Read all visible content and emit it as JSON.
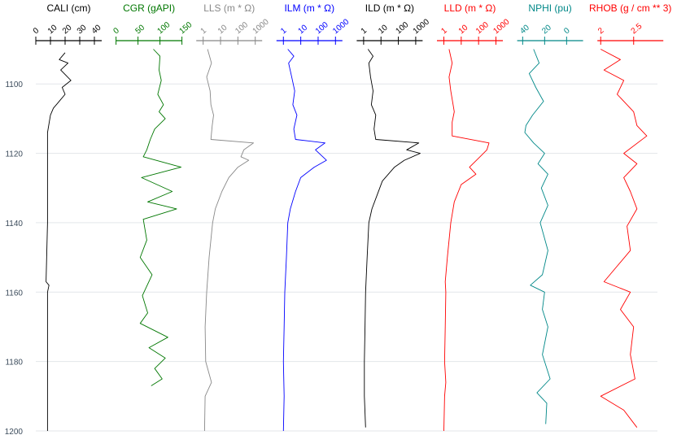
{
  "chart_data": {
    "type": "line",
    "orientation": "vertical-depth-log",
    "depth_axis": {
      "ylim": [
        1200,
        1088
      ],
      "ticks": [
        1100,
        1120,
        1140,
        1160,
        1180,
        1200
      ],
      "grid": true
    },
    "tracks": [
      {
        "name": "CALI (cm)",
        "color": "#000000",
        "scale": "linear",
        "xlim": [
          0,
          45
        ],
        "ticks": [
          0,
          10,
          20,
          30,
          40
        ],
        "tick_labels": [
          "0",
          "10",
          "20",
          "30",
          "40"
        ],
        "points": [
          [
            20,
            1091
          ],
          [
            16,
            1093
          ],
          [
            22,
            1094
          ],
          [
            17,
            1096
          ],
          [
            24,
            1099
          ],
          [
            18,
            1101
          ],
          [
            20,
            1103
          ],
          [
            16,
            1105
          ],
          [
            12,
            1107
          ],
          [
            10,
            1109
          ],
          [
            8,
            1114
          ],
          [
            8,
            1120
          ],
          [
            8,
            1140
          ],
          [
            7,
            1157
          ],
          [
            9,
            1158
          ],
          [
            8,
            1160
          ],
          [
            8,
            1180
          ],
          [
            8,
            1200
          ]
        ]
      },
      {
        "name": "CGR (gAPI)",
        "color": "#007700",
        "scale": "linear",
        "xlim": [
          0,
          150
        ],
        "ticks": [
          0,
          50,
          100,
          150
        ],
        "tick_labels": [
          "0",
          "50",
          "100",
          "150"
        ],
        "points": [
          [
            85,
            1090
          ],
          [
            100,
            1092
          ],
          [
            98,
            1096
          ],
          [
            103,
            1099
          ],
          [
            95,
            1103
          ],
          [
            108,
            1106
          ],
          [
            98,
            1108
          ],
          [
            112,
            1110
          ],
          [
            88,
            1113
          ],
          [
            78,
            1116
          ],
          [
            70,
            1119
          ],
          [
            62,
            1121
          ],
          [
            148,
            1124
          ],
          [
            58,
            1127
          ],
          [
            128,
            1131
          ],
          [
            72,
            1134
          ],
          [
            138,
            1136
          ],
          [
            62,
            1139
          ],
          [
            70,
            1145
          ],
          [
            55,
            1150
          ],
          [
            82,
            1155
          ],
          [
            60,
            1161
          ],
          [
            72,
            1166
          ],
          [
            55,
            1169
          ],
          [
            118,
            1173
          ],
          [
            75,
            1176
          ],
          [
            112,
            1179
          ],
          [
            88,
            1182
          ],
          [
            105,
            1185
          ],
          [
            80,
            1187
          ]
        ]
      },
      {
        "name": "LLS (m * Ω)",
        "color": "#888888",
        "scale": "log",
        "xlim": [
          0.4,
          2500
        ],
        "ticks": [
          1,
          10,
          100,
          1000
        ],
        "tick_labels": [
          "1",
          "10",
          "100",
          "1000"
        ],
        "points": [
          [
            1.8,
            1090
          ],
          [
            3,
            1094
          ],
          [
            1.6,
            1098
          ],
          [
            2.5,
            1102
          ],
          [
            2.8,
            1106
          ],
          [
            4,
            1109
          ],
          [
            3.3,
            1112
          ],
          [
            2.8,
            1116
          ],
          [
            800,
            1117
          ],
          [
            220,
            1119
          ],
          [
            150,
            1121
          ],
          [
            420,
            1122
          ],
          [
            100,
            1124
          ],
          [
            30,
            1127
          ],
          [
            12,
            1131
          ],
          [
            5,
            1136
          ],
          [
            3.5,
            1140
          ],
          [
            2.2,
            1150
          ],
          [
            1.6,
            1160
          ],
          [
            1.3,
            1170
          ],
          [
            1.4,
            1180
          ],
          [
            3,
            1186
          ],
          [
            1.3,
            1190
          ],
          [
            1.2,
            1200
          ]
        ]
      },
      {
        "name": "ILM (m * Ω)",
        "color": "#0000ff",
        "scale": "log",
        "xlim": [
          0.4,
          2500
        ],
        "ticks": [
          1,
          10,
          100,
          1000
        ],
        "tick_labels": [
          "1",
          "10",
          "100",
          "1000"
        ],
        "points": [
          [
            1.8,
            1090
          ],
          [
            4,
            1092
          ],
          [
            2,
            1094
          ],
          [
            3,
            1098
          ],
          [
            4.5,
            1102
          ],
          [
            3.5,
            1106
          ],
          [
            6,
            1109
          ],
          [
            4,
            1113
          ],
          [
            5,
            1116
          ],
          [
            250,
            1117
          ],
          [
            70,
            1119
          ],
          [
            300,
            1122
          ],
          [
            60,
            1124
          ],
          [
            10,
            1127
          ],
          [
            5,
            1131
          ],
          [
            2.5,
            1136
          ],
          [
            1.8,
            1140
          ],
          [
            1.5,
            1150
          ],
          [
            1.2,
            1160
          ],
          [
            1.1,
            1170
          ],
          [
            1,
            1180
          ],
          [
            1.1,
            1190
          ],
          [
            1,
            1200
          ]
        ]
      },
      {
        "name": "ILD (m * Ω)",
        "color": "#000000",
        "scale": "log",
        "xlim": [
          0.4,
          2500
        ],
        "ticks": [
          1,
          10,
          100,
          1000
        ],
        "tick_labels": [
          "1",
          "10",
          "100",
          "1000"
        ],
        "points": [
          [
            1.8,
            1090
          ],
          [
            3.5,
            1092
          ],
          [
            2,
            1094
          ],
          [
            2.5,
            1098
          ],
          [
            3.5,
            1102
          ],
          [
            2.8,
            1106
          ],
          [
            5,
            1109
          ],
          [
            4,
            1113
          ],
          [
            5,
            1116
          ],
          [
            1500,
            1117
          ],
          [
            300,
            1119
          ],
          [
            1800,
            1120
          ],
          [
            220,
            1122
          ],
          [
            60,
            1124
          ],
          [
            12,
            1128
          ],
          [
            6,
            1132
          ],
          [
            3,
            1136
          ],
          [
            2,
            1140
          ],
          [
            1.6,
            1150
          ],
          [
            1.3,
            1160
          ],
          [
            1.2,
            1170
          ],
          [
            1.1,
            1180
          ],
          [
            1.1,
            1190
          ],
          [
            1.3,
            1199
          ]
        ]
      },
      {
        "name": "LLD (m * Ω)",
        "color": "#ff0000",
        "scale": "log",
        "xlim": [
          0.4,
          2500
        ],
        "ticks": [
          1,
          10,
          100,
          1000
        ],
        "tick_labels": [
          "1",
          "10",
          "100",
          "1000"
        ],
        "points": [
          [
            2,
            1090
          ],
          [
            3,
            1094
          ],
          [
            2,
            1098
          ],
          [
            2.5,
            1102
          ],
          [
            4,
            1108
          ],
          [
            3,
            1111
          ],
          [
            3,
            1115
          ],
          [
            400,
            1117
          ],
          [
            300,
            1119
          ],
          [
            120,
            1121
          ],
          [
            30,
            1124
          ],
          [
            70,
            1126
          ],
          [
            10,
            1129
          ],
          [
            4,
            1134
          ],
          [
            2.5,
            1140
          ],
          [
            1.6,
            1150
          ],
          [
            1.2,
            1157
          ],
          [
            1.3,
            1160
          ],
          [
            1.2,
            1170
          ],
          [
            1.1,
            1180
          ],
          [
            1.3,
            1186
          ],
          [
            1.1,
            1190
          ],
          [
            1,
            1200
          ]
        ]
      },
      {
        "name": "NPHI (pu)",
        "color": "#008888",
        "scale": "linear",
        "xlim": [
          45,
          -15
        ],
        "ticks": [
          40,
          20,
          0
        ],
        "tick_labels": [
          "40",
          "20",
          "0"
        ],
        "points": [
          [
            30,
            1090
          ],
          [
            25,
            1094
          ],
          [
            34,
            1097
          ],
          [
            28,
            1101
          ],
          [
            21,
            1105
          ],
          [
            31,
            1109
          ],
          [
            37,
            1112
          ],
          [
            38,
            1114
          ],
          [
            30,
            1117
          ],
          [
            20,
            1120
          ],
          [
            26,
            1123
          ],
          [
            17,
            1126
          ],
          [
            23,
            1130
          ],
          [
            17,
            1135
          ],
          [
            24,
            1140
          ],
          [
            17,
            1148
          ],
          [
            22,
            1155
          ],
          [
            33,
            1158
          ],
          [
            20,
            1160
          ],
          [
            22,
            1165
          ],
          [
            17,
            1170
          ],
          [
            22,
            1178
          ],
          [
            15,
            1185
          ],
          [
            27,
            1189
          ],
          [
            18,
            1192
          ],
          [
            19,
            1198
          ]
        ]
      },
      {
        "name": "RHOB (g / cm ** 3)",
        "color": "#ff0000",
        "scale": "linear",
        "xlim": [
          1.95,
          2.95
        ],
        "ticks": [
          2,
          2.5
        ],
        "tick_labels": [
          "2",
          "2.5"
        ],
        "points": [
          [
            2.0,
            1090
          ],
          [
            2.3,
            1093
          ],
          [
            2.05,
            1096
          ],
          [
            2.35,
            1099
          ],
          [
            2.25,
            1103
          ],
          [
            2.5,
            1108
          ],
          [
            2.55,
            1112
          ],
          [
            2.7,
            1115
          ],
          [
            2.35,
            1120
          ],
          [
            2.55,
            1123
          ],
          [
            2.35,
            1127
          ],
          [
            2.45,
            1131
          ],
          [
            2.55,
            1136
          ],
          [
            2.4,
            1141
          ],
          [
            2.45,
            1148
          ],
          [
            2.05,
            1157
          ],
          [
            2.45,
            1160
          ],
          [
            2.3,
            1165
          ],
          [
            2.5,
            1170
          ],
          [
            2.45,
            1178
          ],
          [
            2.52,
            1185
          ],
          [
            2.0,
            1190
          ],
          [
            2.35,
            1194
          ],
          [
            2.55,
            1199
          ]
        ]
      }
    ]
  }
}
